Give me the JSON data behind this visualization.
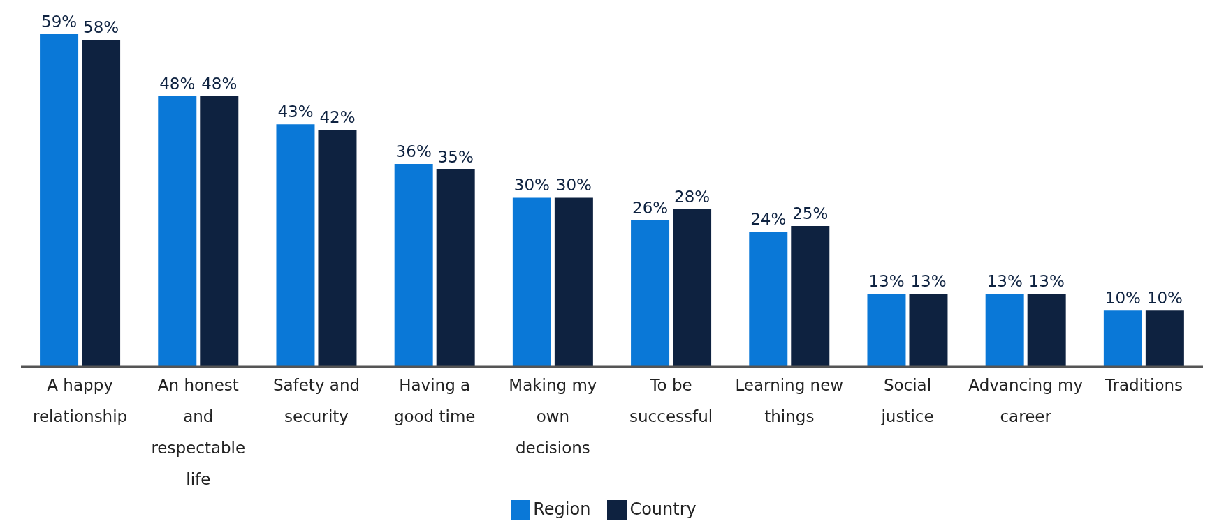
{
  "chart_data": {
    "type": "bar",
    "categories": [
      "A happy relationship",
      "An honest and respectable life",
      "Safety and security",
      "Having a good time",
      "Making my own decisions",
      "To be successful",
      "Learning new things",
      "Social justice",
      "Advancing my career",
      "Traditions"
    ],
    "series": [
      {
        "name": "Region",
        "color": "#0a78d7",
        "values": [
          59,
          48,
          43,
          36,
          30,
          26,
          24,
          13,
          13,
          10
        ],
        "value_labels": [
          "59%",
          "48%",
          "43%",
          "36%",
          "30%",
          "26%",
          "24%",
          "13%",
          "13%",
          "10%"
        ]
      },
      {
        "name": "Country",
        "color": "#0e2240",
        "values": [
          58,
          48,
          42,
          35,
          30,
          28,
          25,
          13,
          13,
          10
        ],
        "value_labels": [
          "58%",
          "48%",
          "42%",
          "35%",
          "30%",
          "28%",
          "25%",
          "13%",
          "13%",
          "10%"
        ]
      }
    ],
    "legend": "bottom",
    "grid": false
  }
}
